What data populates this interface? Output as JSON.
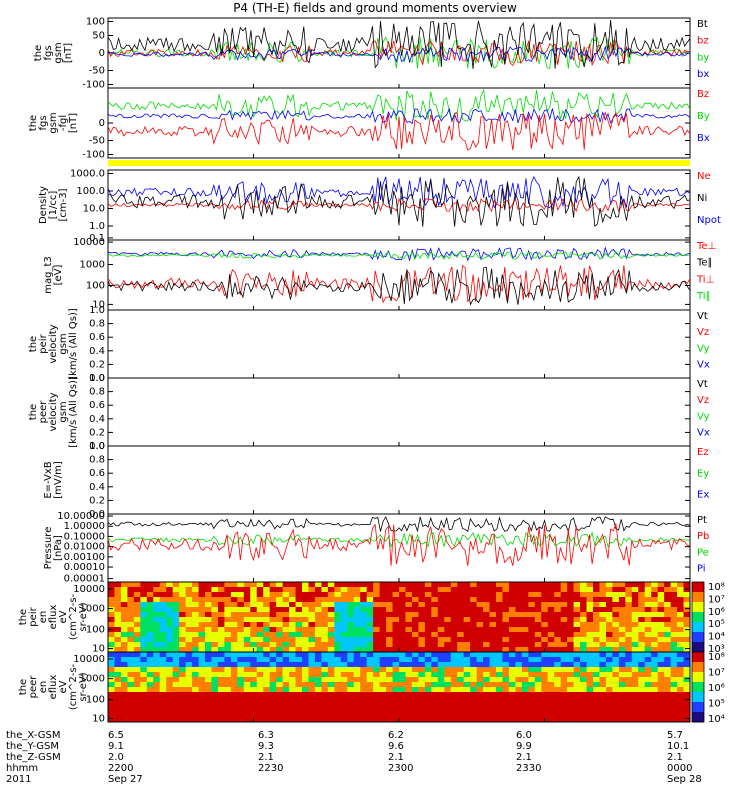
{
  "title": "P4 (TH-E) fields and ground moments overview",
  "colors": {
    "black": "#000000",
    "red": "#ff0000",
    "green": "#00dd00",
    "blue": "#0000ff",
    "yellow": "#ffff00"
  },
  "panels": [
    {
      "id": "fgs",
      "ylabel": [
        "the",
        "fgs",
        "gsm",
        "[nT]"
      ],
      "ticks": [
        "100",
        "50",
        "0",
        "-50",
        "-100"
      ],
      "legend": [
        {
          "text": "Bt",
          "color": "#000000"
        },
        {
          "text": "bz",
          "color": "#ff0000"
        },
        {
          "text": "by",
          "color": "#00dd00"
        },
        {
          "text": "bx",
          "color": "#0000ff"
        }
      ]
    },
    {
      "id": "fgs-fgl",
      "ylabel": [
        "the",
        "fgs",
        "gsm",
        "-fgl",
        "[nT]"
      ],
      "ticks": [
        "0",
        "-50",
        "-100"
      ],
      "legend": [
        {
          "text": "Bz",
          "color": "#ff0000"
        },
        {
          "text": "By",
          "color": "#00dd00"
        },
        {
          "text": "Bx",
          "color": "#0000ff"
        }
      ]
    },
    {
      "id": "density",
      "ylabel": [
        "Density",
        "[1/cc]",
        "[cm-3]"
      ],
      "ticks": [
        "1000.0",
        "100.0",
        "10.0",
        "1.0",
        "0.1"
      ],
      "legend": [
        {
          "text": "Ne",
          "color": "#ff0000"
        },
        {
          "text": "Ni",
          "color": "#000000"
        },
        {
          "text": "Npot",
          "color": "#0000ff"
        }
      ]
    },
    {
      "id": "temp",
      "ylabel": [
        "mag_t3",
        "[eV]"
      ],
      "ticks": [
        "10000",
        "1000",
        "100",
        "10"
      ],
      "legend": [
        {
          "text": "Te⊥",
          "color": "#ff0000"
        },
        {
          "text": "Te∥",
          "color": "#000000"
        },
        {
          "text": "Ti⊥",
          "color": "#ff0000"
        },
        {
          "text": "Ti∥",
          "color": "#00dd00"
        }
      ]
    },
    {
      "id": "peir-vel",
      "ylabel": [
        "the",
        "peir",
        "velocity",
        "gsm",
        "[km/s (All Qs)]"
      ],
      "ticks": [
        "1.0",
        "0.8",
        "0.6",
        "0.4",
        "0.2",
        "0.0"
      ],
      "legend": [
        {
          "text": "Vt",
          "color": "#000000"
        },
        {
          "text": "Vz",
          "color": "#ff0000"
        },
        {
          "text": "Vy",
          "color": "#00dd00"
        },
        {
          "text": "Vx",
          "color": "#0000ff"
        }
      ]
    },
    {
      "id": "peer-vel",
      "ylabel": [
        "the",
        "peer",
        "velocity",
        "gsm",
        "[km/s (All Qs)]"
      ],
      "ticks": [
        "1.0",
        "0.8",
        "0.6",
        "0.4",
        "0.2",
        "0.0"
      ],
      "legend": [
        {
          "text": "Vt",
          "color": "#000000"
        },
        {
          "text": "Vz",
          "color": "#ff0000"
        },
        {
          "text": "Vy",
          "color": "#00dd00"
        },
        {
          "text": "Vx",
          "color": "#0000ff"
        }
      ]
    },
    {
      "id": "exb",
      "ylabel": [
        "E=-VxB",
        "[mV/m]"
      ],
      "ticks": [
        "1.0",
        "0.8",
        "0.6",
        "0.4",
        "0.2",
        "0.0"
      ],
      "legend": [
        {
          "text": "Ez",
          "color": "#ff0000"
        },
        {
          "text": "Ey",
          "color": "#00dd00"
        },
        {
          "text": "Ex",
          "color": "#0000ff"
        }
      ]
    },
    {
      "id": "pressure",
      "ylabel": [
        "Pressure",
        "[nPa]"
      ],
      "ticks": [
        "10.00000",
        "1.00000",
        "0.10000",
        "0.01000",
        "0.00100",
        "0.00010",
        "0.00001"
      ],
      "legend": [
        {
          "text": "Pt",
          "color": "#000000"
        },
        {
          "text": "Pb",
          "color": "#ff0000"
        },
        {
          "text": "Pe",
          "color": "#00dd00"
        },
        {
          "text": "Pi",
          "color": "#0000ff"
        }
      ]
    },
    {
      "id": "peir-eflux",
      "ylabel": [
        "the",
        "peir",
        "en",
        "eflux",
        "eV",
        "(cm^2-s-",
        "sr-eV)"
      ],
      "ticks": [
        "10000",
        "1000",
        "100",
        "10"
      ],
      "colorbar": [
        "10⁸",
        "10⁷",
        "10⁶",
        "10⁵",
        "10⁴",
        "10³"
      ]
    },
    {
      "id": "peer-eflux",
      "ylabel": [
        "the",
        "peer",
        "en",
        "eflux",
        "eV",
        "(cm^2-s-",
        "sr-eV)"
      ],
      "ticks": [
        "10000",
        "1000",
        "100",
        "10"
      ],
      "colorbar": [
        "10⁸",
        "10⁷",
        "10⁶",
        "10⁵",
        "10⁴"
      ]
    }
  ],
  "chart_data": {
    "type": "line",
    "title": "P4 (TH-E) fields and ground moments overview",
    "x_ticks": [
      "2200",
      "2230",
      "2300",
      "2330",
      "0000"
    ],
    "ephemeris": [
      {
        "label": "the_X-GSM",
        "values": [
          "6.5",
          "6.3",
          "6.2",
          "6.0",
          "5.7"
        ]
      },
      {
        "label": "the_Y-GSM",
        "values": [
          "9.1",
          "9.3",
          "9.6",
          "9.9",
          "10.1"
        ]
      },
      {
        "label": "the_Z-GSM",
        "values": [
          "2.0",
          "2.1",
          "2.1",
          "2.1",
          "2.1"
        ]
      },
      {
        "label": "hhmm",
        "values": [
          "2200",
          "2230",
          "2300",
          "2330",
          "0000"
        ]
      },
      {
        "label": "2011",
        "values": [
          "Sep 27",
          "",
          "",
          "",
          "Sep 28"
        ]
      }
    ]
  }
}
